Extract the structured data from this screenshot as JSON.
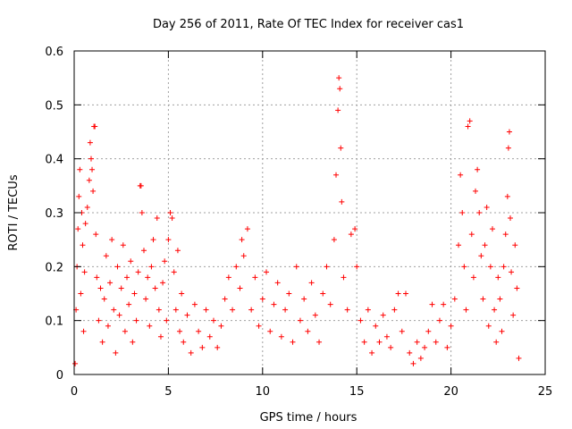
{
  "chart_data": {
    "type": "scatter",
    "title": "Day 256 of 2011, Rate Of TEC Index for receiver cas1",
    "xlabel": "GPS time / hours",
    "ylabel": "ROTI / TECUs",
    "xlim": [
      0,
      25
    ],
    "ylim": [
      0,
      0.6
    ],
    "x_ticks": [
      "0",
      "5",
      "10",
      "15",
      "20",
      "25"
    ],
    "y_ticks": [
      "0",
      "0.1",
      "0.2",
      "0.3",
      "0.4",
      "0.5",
      "0.6"
    ],
    "x_tick_values": [
      0,
      5,
      10,
      15,
      20,
      25
    ],
    "y_tick_values": [
      0,
      0.1,
      0.2,
      0.3,
      0.4,
      0.5,
      0.6
    ],
    "grid": true,
    "marker": "plus",
    "color": "#ff0000",
    "series": [
      {
        "points": [
          [
            0.05,
            0.02
          ],
          [
            0.1,
            0.12
          ],
          [
            0.15,
            0.2
          ],
          [
            0.2,
            0.27
          ],
          [
            0.25,
            0.33
          ],
          [
            0.3,
            0.38
          ],
          [
            0.35,
            0.15
          ],
          [
            0.4,
            0.3
          ],
          [
            0.45,
            0.24
          ],
          [
            0.5,
            0.08
          ],
          [
            0.55,
            0.19
          ],
          [
            0.6,
            0.28
          ],
          [
            0.7,
            0.31
          ],
          [
            0.8,
            0.36
          ],
          [
            0.85,
            0.43
          ],
          [
            0.9,
            0.4
          ],
          [
            0.95,
            0.38
          ],
          [
            1.0,
            0.34
          ],
          [
            1.05,
            0.46
          ],
          [
            1.1,
            0.46
          ],
          [
            1.15,
            0.26
          ],
          [
            1.2,
            0.18
          ],
          [
            1.3,
            0.1
          ],
          [
            1.4,
            0.16
          ],
          [
            1.5,
            0.06
          ],
          [
            1.6,
            0.14
          ],
          [
            1.7,
            0.22
          ],
          [
            1.8,
            0.09
          ],
          [
            1.9,
            0.17
          ],
          [
            2.0,
            0.25
          ],
          [
            2.1,
            0.12
          ],
          [
            2.2,
            0.04
          ],
          [
            2.3,
            0.2
          ],
          [
            2.4,
            0.11
          ],
          [
            2.5,
            0.16
          ],
          [
            2.6,
            0.24
          ],
          [
            2.7,
            0.08
          ],
          [
            2.8,
            0.18
          ],
          [
            2.9,
            0.13
          ],
          [
            3.0,
            0.21
          ],
          [
            3.1,
            0.06
          ],
          [
            3.2,
            0.15
          ],
          [
            3.3,
            0.1
          ],
          [
            3.4,
            0.19
          ],
          [
            3.5,
            0.35
          ],
          [
            3.55,
            0.35
          ],
          [
            3.6,
            0.3
          ],
          [
            3.7,
            0.23
          ],
          [
            3.8,
            0.14
          ],
          [
            3.9,
            0.18
          ],
          [
            4.0,
            0.09
          ],
          [
            4.1,
            0.2
          ],
          [
            4.2,
            0.25
          ],
          [
            4.3,
            0.16
          ],
          [
            4.4,
            0.29
          ],
          [
            4.5,
            0.12
          ],
          [
            4.6,
            0.07
          ],
          [
            4.7,
            0.17
          ],
          [
            4.8,
            0.21
          ],
          [
            4.9,
            0.1
          ],
          [
            5.0,
            0.25
          ],
          [
            5.1,
            0.3
          ],
          [
            5.2,
            0.29
          ],
          [
            5.3,
            0.19
          ],
          [
            5.4,
            0.12
          ],
          [
            5.5,
            0.23
          ],
          [
            5.6,
            0.08
          ],
          [
            5.7,
            0.15
          ],
          [
            5.8,
            0.06
          ],
          [
            6.0,
            0.11
          ],
          [
            6.2,
            0.04
          ],
          [
            6.4,
            0.13
          ],
          [
            6.6,
            0.08
          ],
          [
            6.8,
            0.05
          ],
          [
            7.0,
            0.12
          ],
          [
            7.2,
            0.07
          ],
          [
            7.4,
            0.1
          ],
          [
            7.6,
            0.05
          ],
          [
            7.8,
            0.09
          ],
          [
            8.0,
            0.14
          ],
          [
            8.2,
            0.18
          ],
          [
            8.4,
            0.12
          ],
          [
            8.6,
            0.2
          ],
          [
            8.8,
            0.16
          ],
          [
            8.9,
            0.25
          ],
          [
            9.0,
            0.22
          ],
          [
            9.2,
            0.27
          ],
          [
            9.4,
            0.12
          ],
          [
            9.6,
            0.18
          ],
          [
            9.8,
            0.09
          ],
          [
            10.0,
            0.14
          ],
          [
            10.2,
            0.19
          ],
          [
            10.4,
            0.08
          ],
          [
            10.6,
            0.13
          ],
          [
            10.8,
            0.17
          ],
          [
            11.0,
            0.07
          ],
          [
            11.2,
            0.12
          ],
          [
            11.4,
            0.15
          ],
          [
            11.6,
            0.06
          ],
          [
            11.8,
            0.2
          ],
          [
            12.0,
            0.1
          ],
          [
            12.2,
            0.14
          ],
          [
            12.4,
            0.08
          ],
          [
            12.6,
            0.17
          ],
          [
            12.8,
            0.11
          ],
          [
            13.0,
            0.06
          ],
          [
            13.2,
            0.15
          ],
          [
            13.4,
            0.2
          ],
          [
            13.6,
            0.13
          ],
          [
            13.8,
            0.25
          ],
          [
            13.9,
            0.37
          ],
          [
            14.0,
            0.49
          ],
          [
            14.05,
            0.55
          ],
          [
            14.1,
            0.53
          ],
          [
            14.15,
            0.42
          ],
          [
            14.2,
            0.32
          ],
          [
            14.3,
            0.18
          ],
          [
            14.5,
            0.12
          ],
          [
            14.7,
            0.26
          ],
          [
            14.9,
            0.27
          ],
          [
            15.0,
            0.2
          ],
          [
            15.2,
            0.1
          ],
          [
            15.4,
            0.06
          ],
          [
            15.6,
            0.12
          ],
          [
            15.8,
            0.04
          ],
          [
            16.0,
            0.09
          ],
          [
            16.2,
            0.06
          ],
          [
            16.4,
            0.11
          ],
          [
            16.6,
            0.07
          ],
          [
            16.8,
            0.05
          ],
          [
            17.0,
            0.12
          ],
          [
            17.2,
            0.15
          ],
          [
            17.4,
            0.08
          ],
          [
            17.6,
            0.15
          ],
          [
            17.8,
            0.04
          ],
          [
            18.0,
            0.02
          ],
          [
            18.2,
            0.06
          ],
          [
            18.4,
            0.03
          ],
          [
            18.6,
            0.05
          ],
          [
            18.8,
            0.08
          ],
          [
            19.0,
            0.13
          ],
          [
            19.2,
            0.06
          ],
          [
            19.4,
            0.1
          ],
          [
            19.6,
            0.13
          ],
          [
            19.8,
            0.05
          ],
          [
            20.0,
            0.09
          ],
          [
            20.2,
            0.14
          ],
          [
            20.4,
            0.24
          ],
          [
            20.5,
            0.37
          ],
          [
            20.6,
            0.3
          ],
          [
            20.7,
            0.2
          ],
          [
            20.8,
            0.12
          ],
          [
            20.9,
            0.46
          ],
          [
            21.0,
            0.47
          ],
          [
            21.1,
            0.26
          ],
          [
            21.2,
            0.18
          ],
          [
            21.3,
            0.34
          ],
          [
            21.4,
            0.38
          ],
          [
            21.5,
            0.3
          ],
          [
            21.6,
            0.22
          ],
          [
            21.7,
            0.14
          ],
          [
            21.8,
            0.24
          ],
          [
            21.9,
            0.31
          ],
          [
            22.0,
            0.09
          ],
          [
            22.1,
            0.2
          ],
          [
            22.2,
            0.27
          ],
          [
            22.3,
            0.12
          ],
          [
            22.4,
            0.06
          ],
          [
            22.5,
            0.18
          ],
          [
            22.6,
            0.14
          ],
          [
            22.7,
            0.08
          ],
          [
            22.8,
            0.2
          ],
          [
            22.9,
            0.26
          ],
          [
            23.0,
            0.33
          ],
          [
            23.05,
            0.42
          ],
          [
            23.1,
            0.45
          ],
          [
            23.15,
            0.29
          ],
          [
            23.2,
            0.19
          ],
          [
            23.3,
            0.11
          ],
          [
            23.4,
            0.24
          ],
          [
            23.5,
            0.16
          ],
          [
            23.6,
            0.03
          ]
        ]
      }
    ]
  }
}
